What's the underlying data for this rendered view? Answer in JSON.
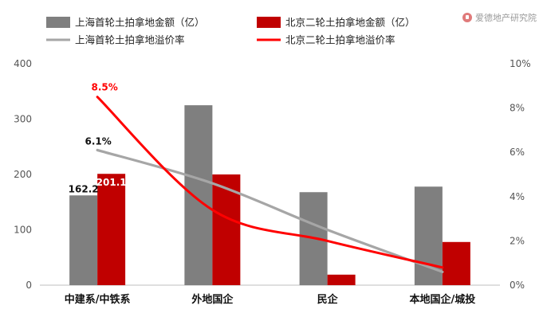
{
  "brand": {
    "text": "爱德地产研究院",
    "icon": "brand-logo-icon"
  },
  "chart_data": {
    "type": "bar",
    "categories": [
      "中建系/中铁系",
      "外地国企",
      "民企",
      "本地国企/城投"
    ],
    "y_left_ticks": [
      "0",
      "100",
      "200",
      "300",
      "400"
    ],
    "y_right_ticks": [
      "0%",
      "2%",
      "4%",
      "6%",
      "8%",
      "10%"
    ],
    "ylim_left": [
      0,
      400
    ],
    "ylim_right": [
      0,
      10
    ],
    "bar_series": [
      {
        "name": "上海首轮土拍拿地金额（亿）",
        "color": "#7f7f7f",
        "values": [
          162.2,
          325,
          168,
          178
        ]
      },
      {
        "name": "北京二轮土拍拿地金额（亿）",
        "color": "#c00000",
        "values": [
          201.1,
          200,
          19,
          78
        ]
      }
    ],
    "line_series": [
      {
        "name": "上海首轮土拍拿地溢价率",
        "color": "#a6a6a6",
        "values": [
          6.1,
          4.6,
          2.5,
          0.6
        ]
      },
      {
        "name": "北京二轮土拍拿地溢价率",
        "color": "#ff0000",
        "values": [
          8.5,
          3.4,
          2.0,
          0.8
        ]
      }
    ],
    "data_labels": {
      "bar_sh_first": "162.2",
      "bar_bj_first": "201.1",
      "line_sh_first": "6.1%",
      "line_bj_first": "8.5%"
    },
    "grid": false,
    "legend_position": "top"
  }
}
